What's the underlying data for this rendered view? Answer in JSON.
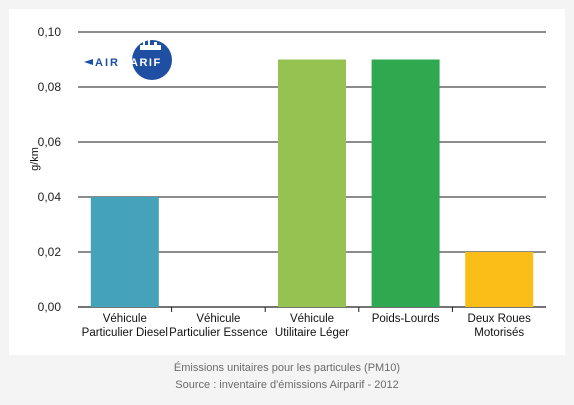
{
  "chart_data": {
    "type": "bar",
    "categories": [
      [
        "Véhicule",
        "Particulier Diesel"
      ],
      [
        "Véhicule",
        "Particulier Essence"
      ],
      [
        "Véhicule",
        "Utilitaire Léger"
      ],
      [
        "Poids-Lourds"
      ],
      [
        "Deux Roues",
        "Motorisés"
      ]
    ],
    "values": [
      0.04,
      0.0,
      0.09,
      0.09,
      0.02
    ],
    "colors": [
      "#45a2bb",
      "#45a2bb",
      "#95c251",
      "#2fa84f",
      "#fbbd17"
    ],
    "ylabel": "g/km",
    "ylim": [
      0,
      0.1
    ],
    "yticks": [
      0,
      0.02,
      0.04,
      0.06,
      0.08,
      0.1
    ],
    "ytick_labels": [
      "0,00",
      "0,02",
      "0,04",
      "0,06",
      "0,08",
      "0,10"
    ],
    "grid": true
  },
  "logo": {
    "text": "AIRPARIF",
    "color": "#1e4fa3"
  },
  "caption": {
    "line1": "Émissions unitaires pour les particules (PM10)",
    "line2": "Source : inventaire d'émissions Airparif - 2012"
  }
}
